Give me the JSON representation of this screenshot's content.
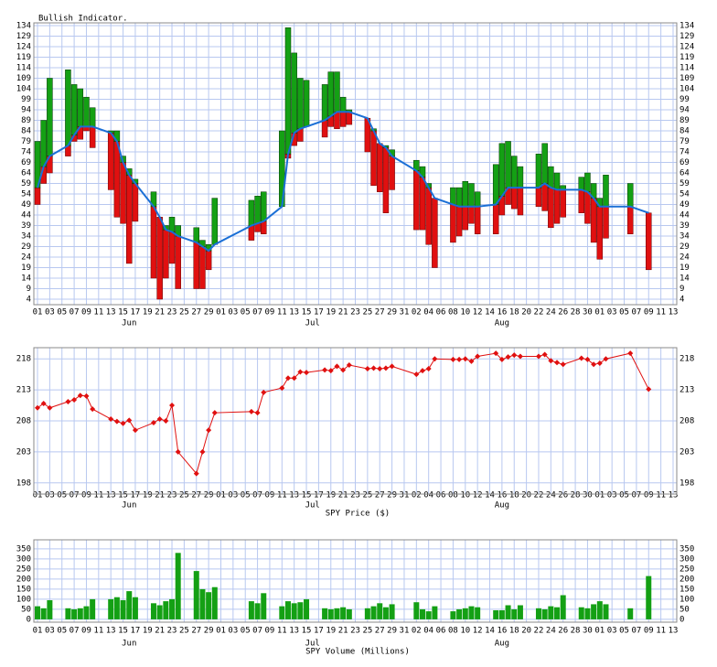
{
  "chart_data": [
    {
      "type": "bullish",
      "title": "Bullish Indicator.",
      "x": [
        0,
        1,
        2,
        5,
        6,
        7,
        8,
        9,
        12,
        13,
        14,
        15,
        16,
        19,
        20,
        21,
        22,
        23,
        26,
        27,
        28,
        29,
        35,
        36,
        37,
        40,
        41,
        42,
        43,
        44,
        47,
        48,
        49,
        50,
        51,
        54,
        55,
        56,
        57,
        58,
        62,
        63,
        64,
        65,
        68,
        69,
        70,
        71,
        72,
        75,
        76,
        77,
        78,
        79,
        82,
        83,
        84,
        85,
        86,
        89,
        90,
        91,
        92,
        93,
        97,
        100
      ],
      "lows": [
        49,
        59,
        64,
        72,
        79,
        80,
        84,
        76,
        56,
        43,
        40,
        21,
        41,
        14,
        4,
        14,
        21,
        9,
        9,
        9,
        18,
        30,
        32,
        36,
        35,
        48,
        71,
        77,
        79,
        86,
        81,
        86,
        85,
        86,
        87,
        74,
        58,
        55,
        45,
        56,
        37,
        37,
        30,
        19,
        31,
        34,
        37,
        40,
        35,
        35,
        44,
        49,
        47,
        44,
        48,
        46,
        38,
        40,
        43,
        45,
        40,
        31,
        23,
        33,
        35,
        18
      ],
      "values": [
        57,
        67,
        72,
        77,
        82,
        86,
        86,
        86,
        83,
        79,
        69,
        63,
        59,
        48,
        43,
        37,
        36,
        34,
        31,
        29,
        27,
        30,
        39,
        40,
        41,
        48,
        73,
        83,
        85,
        86,
        89,
        91,
        93,
        93,
        93,
        90,
        84,
        78,
        76,
        72,
        65,
        62,
        57,
        52,
        49,
        48,
        48,
        48,
        48,
        49,
        53,
        57,
        57,
        57,
        57,
        59,
        57,
        56,
        56,
        56,
        55,
        52,
        48,
        48,
        48,
        45
      ],
      "highs": [
        79,
        89,
        109,
        113,
        106,
        104,
        100,
        95,
        84,
        84,
        72,
        66,
        61,
        55,
        43,
        39,
        43,
        39,
        38,
        32,
        30,
        52,
        51,
        53,
        55,
        84,
        133,
        121,
        109,
        108,
        106,
        112,
        112,
        100,
        94,
        90,
        85,
        78,
        77,
        75,
        70,
        67,
        59,
        52,
        57,
        57,
        60,
        59,
        55,
        68,
        78,
        79,
        72,
        67,
        73,
        78,
        67,
        64,
        58,
        62,
        64,
        59,
        52,
        63,
        59,
        45
      ],
      "up_color": "#14a014",
      "down_color": "#e01010",
      "line_color": "#1a6fd6",
      "xlim": [
        -0.6,
        104.6
      ],
      "ylim": [
        1.4,
        135.3
      ],
      "yticks": [
        4,
        9,
        14,
        19,
        24,
        29,
        34,
        39,
        44,
        49,
        54,
        59,
        64,
        69,
        74,
        79,
        84,
        89,
        94,
        99,
        104,
        109,
        114,
        119,
        124,
        129,
        134
      ],
      "xticks": [
        {
          "value": 0,
          "label": "01"
        },
        {
          "value": 2,
          "label": "03"
        },
        {
          "value": 4,
          "label": "05"
        },
        {
          "value": 6,
          "label": "07"
        },
        {
          "value": 8,
          "label": "09"
        },
        {
          "value": 10,
          "label": "11"
        },
        {
          "value": 12,
          "label": "13"
        },
        {
          "value": 14,
          "label": "15"
        },
        {
          "value": 16,
          "label": "17"
        },
        {
          "value": 18,
          "label": "19"
        },
        {
          "value": 20,
          "label": "21"
        },
        {
          "value": 22,
          "label": "23"
        },
        {
          "value": 24,
          "label": "25"
        },
        {
          "value": 26,
          "label": "27"
        },
        {
          "value": 28,
          "label": "29"
        },
        {
          "value": 30,
          "label": "01"
        },
        {
          "value": 32,
          "label": "03"
        },
        {
          "value": 34,
          "label": "05"
        },
        {
          "value": 36,
          "label": "07"
        },
        {
          "value": 38,
          "label": "09"
        },
        {
          "value": 40,
          "label": "11"
        },
        {
          "value": 42,
          "label": "13"
        },
        {
          "value": 44,
          "label": "15"
        },
        {
          "value": 46,
          "label": "17"
        },
        {
          "value": 48,
          "label": "19"
        },
        {
          "value": 50,
          "label": "21"
        },
        {
          "value": 52,
          "label": "23"
        },
        {
          "value": 54,
          "label": "25"
        },
        {
          "value": 56,
          "label": "27"
        },
        {
          "value": 58,
          "label": "29"
        },
        {
          "value": 60,
          "label": "31"
        },
        {
          "value": 62,
          "label": "02"
        },
        {
          "value": 64,
          "label": "04"
        },
        {
          "value": 66,
          "label": "06"
        },
        {
          "value": 68,
          "label": "08"
        },
        {
          "value": 70,
          "label": "10"
        },
        {
          "value": 72,
          "label": "12"
        },
        {
          "value": 74,
          "label": "14"
        },
        {
          "value": 76,
          "label": "16"
        },
        {
          "value": 78,
          "label": "18"
        },
        {
          "value": 80,
          "label": "20"
        },
        {
          "value": 82,
          "label": "22"
        },
        {
          "value": 84,
          "label": "24"
        },
        {
          "value": 86,
          "label": "26"
        },
        {
          "value": 88,
          "label": "28"
        },
        {
          "value": 90,
          "label": "30"
        },
        {
          "value": 92,
          "label": "01"
        },
        {
          "value": 94,
          "label": "03"
        },
        {
          "value": 96,
          "label": "05"
        },
        {
          "value": 98,
          "label": "07"
        },
        {
          "value": 100,
          "label": "09"
        },
        {
          "value": 102,
          "label": "11"
        },
        {
          "value": 104,
          "label": "13"
        }
      ],
      "month_labels": [
        {
          "value": 15,
          "label": "Jun"
        },
        {
          "value": 45,
          "label": "Jul"
        },
        {
          "value": 76,
          "label": "Aug"
        }
      ],
      "grid": true
    },
    {
      "type": "line",
      "title": "SPY Price ($)",
      "x": [
        0,
        1,
        2,
        5,
        6,
        7,
        8,
        9,
        12,
        13,
        14,
        15,
        16,
        19,
        20,
        21,
        22,
        23,
        26,
        27,
        28,
        29,
        35,
        36,
        37,
        40,
        41,
        42,
        43,
        44,
        47,
        48,
        49,
        50,
        51,
        54,
        55,
        56,
        57,
        58,
        62,
        63,
        64,
        65,
        68,
        69,
        70,
        71,
        72,
        75,
        76,
        77,
        78,
        79,
        82,
        83,
        84,
        85,
        86,
        89,
        90,
        91,
        92,
        93,
        97,
        100
      ],
      "values": [
        210.1,
        210.8,
        210.1,
        211.1,
        211.4,
        212.1,
        212.0,
        209.9,
        208.3,
        207.9,
        207.6,
        208.1,
        206.5,
        207.7,
        208.3,
        208.0,
        210.5,
        203.0,
        199.5,
        203.0,
        206.5,
        209.3,
        209.5,
        209.3,
        212.6,
        213.3,
        214.9,
        214.9,
        215.9,
        215.8,
        216.2,
        216.1,
        216.8,
        216.2,
        217.0,
        216.4,
        216.5,
        216.4,
        216.5,
        216.8,
        215.5,
        216.1,
        216.4,
        218.0,
        217.9,
        217.9,
        218.0,
        217.6,
        218.4,
        218.9,
        217.9,
        218.3,
        218.6,
        218.4,
        218.4,
        218.7,
        217.7,
        217.4,
        217.1,
        218.1,
        217.9,
        217.1,
        217.3,
        218.0,
        218.9,
        213.1
      ],
      "color": "#e01010",
      "xlim": [
        -0.6,
        104.6
      ],
      "ylim": [
        196.2,
        219.8
      ],
      "yticks": [
        198,
        203,
        208,
        213,
        218
      ],
      "xticks": [
        {
          "value": 0,
          "label": "01"
        },
        {
          "value": 2,
          "label": "03"
        },
        {
          "value": 4,
          "label": "05"
        },
        {
          "value": 6,
          "label": "07"
        },
        {
          "value": 8,
          "label": "09"
        },
        {
          "value": 10,
          "label": "11"
        },
        {
          "value": 12,
          "label": "13"
        },
        {
          "value": 14,
          "label": "15"
        },
        {
          "value": 16,
          "label": "17"
        },
        {
          "value": 18,
          "label": "19"
        },
        {
          "value": 20,
          "label": "21"
        },
        {
          "value": 22,
          "label": "23"
        },
        {
          "value": 24,
          "label": "25"
        },
        {
          "value": 26,
          "label": "27"
        },
        {
          "value": 28,
          "label": "29"
        },
        {
          "value": 30,
          "label": "01"
        },
        {
          "value": 32,
          "label": "03"
        },
        {
          "value": 34,
          "label": "05"
        },
        {
          "value": 36,
          "label": "07"
        },
        {
          "value": 38,
          "label": "09"
        },
        {
          "value": 40,
          "label": "11"
        },
        {
          "value": 42,
          "label": "13"
        },
        {
          "value": 44,
          "label": "15"
        },
        {
          "value": 46,
          "label": "17"
        },
        {
          "value": 48,
          "label": "19"
        },
        {
          "value": 50,
          "label": "21"
        },
        {
          "value": 52,
          "label": "23"
        },
        {
          "value": 54,
          "label": "25"
        },
        {
          "value": 56,
          "label": "27"
        },
        {
          "value": 58,
          "label": "29"
        },
        {
          "value": 60,
          "label": "31"
        },
        {
          "value": 62,
          "label": "02"
        },
        {
          "value": 64,
          "label": "04"
        },
        {
          "value": 66,
          "label": "06"
        },
        {
          "value": 68,
          "label": "08"
        },
        {
          "value": 70,
          "label": "10"
        },
        {
          "value": 72,
          "label": "12"
        },
        {
          "value": 74,
          "label": "14"
        },
        {
          "value": 76,
          "label": "16"
        },
        {
          "value": 78,
          "label": "18"
        },
        {
          "value": 80,
          "label": "20"
        },
        {
          "value": 82,
          "label": "22"
        },
        {
          "value": 84,
          "label": "24"
        },
        {
          "value": 86,
          "label": "26"
        },
        {
          "value": 88,
          "label": "28"
        },
        {
          "value": 90,
          "label": "30"
        },
        {
          "value": 92,
          "label": "01"
        },
        {
          "value": 94,
          "label": "03"
        },
        {
          "value": 96,
          "label": "05"
        },
        {
          "value": 98,
          "label": "07"
        },
        {
          "value": 100,
          "label": "09"
        },
        {
          "value": 102,
          "label": "11"
        },
        {
          "value": 104,
          "label": "13"
        }
      ],
      "month_labels": [
        {
          "value": 15,
          "label": "Jun"
        },
        {
          "value": 45,
          "label": "Jul"
        },
        {
          "value": 76,
          "label": "Aug"
        }
      ],
      "grid": true
    },
    {
      "type": "bar",
      "title": "SPY Volume (Millions)",
      "x": [
        0,
        1,
        2,
        5,
        6,
        7,
        8,
        9,
        12,
        13,
        14,
        15,
        16,
        19,
        20,
        21,
        22,
        23,
        26,
        27,
        28,
        29,
        35,
        36,
        37,
        40,
        41,
        42,
        43,
        44,
        47,
        48,
        49,
        50,
        51,
        54,
        55,
        56,
        57,
        58,
        62,
        63,
        64,
        65,
        68,
        69,
        70,
        71,
        72,
        75,
        76,
        77,
        78,
        79,
        82,
        83,
        84,
        85,
        86,
        89,
        90,
        91,
        92,
        93,
        97,
        100
      ],
      "values": [
        65,
        55,
        95,
        55,
        50,
        55,
        65,
        100,
        100,
        110,
        95,
        140,
        110,
        80,
        70,
        90,
        100,
        330,
        240,
        150,
        135,
        160,
        90,
        80,
        130,
        65,
        90,
        80,
        85,
        100,
        55,
        50,
        55,
        60,
        50,
        55,
        65,
        80,
        60,
        75,
        85,
        50,
        40,
        65,
        40,
        50,
        55,
        65,
        60,
        45,
        45,
        70,
        50,
        70,
        55,
        50,
        65,
        60,
        120,
        60,
        55,
        75,
        90,
        75,
        55,
        215
      ],
      "color": "#14a014",
      "xlim": [
        -0.6,
        104.6
      ],
      "ylim": [
        -14,
        395
      ],
      "yticks": [
        0,
        50,
        100,
        150,
        200,
        250,
        300,
        350
      ],
      "xticks": [
        {
          "value": 0,
          "label": "01"
        },
        {
          "value": 2,
          "label": "03"
        },
        {
          "value": 4,
          "label": "05"
        },
        {
          "value": 6,
          "label": "07"
        },
        {
          "value": 8,
          "label": "09"
        },
        {
          "value": 10,
          "label": "11"
        },
        {
          "value": 12,
          "label": "13"
        },
        {
          "value": 14,
          "label": "15"
        },
        {
          "value": 16,
          "label": "17"
        },
        {
          "value": 18,
          "label": "19"
        },
        {
          "value": 20,
          "label": "21"
        },
        {
          "value": 22,
          "label": "23"
        },
        {
          "value": 24,
          "label": "25"
        },
        {
          "value": 26,
          "label": "27"
        },
        {
          "value": 28,
          "label": "29"
        },
        {
          "value": 30,
          "label": "01"
        },
        {
          "value": 32,
          "label": "03"
        },
        {
          "value": 34,
          "label": "05"
        },
        {
          "value": 36,
          "label": "07"
        },
        {
          "value": 38,
          "label": "09"
        },
        {
          "value": 40,
          "label": "11"
        },
        {
          "value": 42,
          "label": "13"
        },
        {
          "value": 44,
          "label": "15"
        },
        {
          "value": 46,
          "label": "17"
        },
        {
          "value": 48,
          "label": "19"
        },
        {
          "value": 50,
          "label": "21"
        },
        {
          "value": 52,
          "label": "23"
        },
        {
          "value": 54,
          "label": "25"
        },
        {
          "value": 56,
          "label": "27"
        },
        {
          "value": 58,
          "label": "29"
        },
        {
          "value": 60,
          "label": "31"
        },
        {
          "value": 62,
          "label": "02"
        },
        {
          "value": 64,
          "label": "04"
        },
        {
          "value": 66,
          "label": "06"
        },
        {
          "value": 68,
          "label": "08"
        },
        {
          "value": 70,
          "label": "10"
        },
        {
          "value": 72,
          "label": "12"
        },
        {
          "value": 74,
          "label": "14"
        },
        {
          "value": 76,
          "label": "16"
        },
        {
          "value": 78,
          "label": "18"
        },
        {
          "value": 80,
          "label": "20"
        },
        {
          "value": 82,
          "label": "22"
        },
        {
          "value": 84,
          "label": "24"
        },
        {
          "value": 86,
          "label": "26"
        },
        {
          "value": 88,
          "label": "28"
        },
        {
          "value": 90,
          "label": "30"
        },
        {
          "value": 92,
          "label": "01"
        },
        {
          "value": 94,
          "label": "03"
        },
        {
          "value": 96,
          "label": "05"
        },
        {
          "value": 98,
          "label": "07"
        },
        {
          "value": 100,
          "label": "09"
        },
        {
          "value": 102,
          "label": "11"
        },
        {
          "value": 104,
          "label": "13"
        }
      ],
      "month_labels": [
        {
          "value": 15,
          "label": "Jun"
        },
        {
          "value": 45,
          "label": "Jul"
        },
        {
          "value": 76,
          "label": "Aug"
        }
      ],
      "grid": true
    }
  ]
}
